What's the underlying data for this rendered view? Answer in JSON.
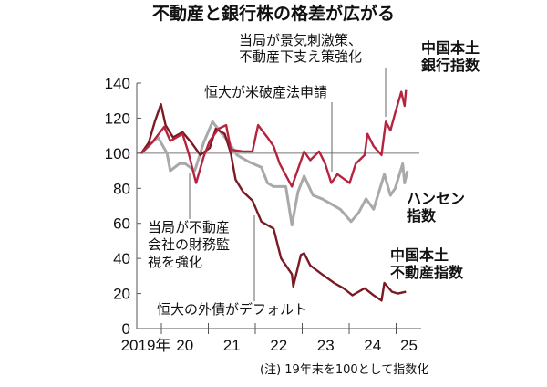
{
  "chart_data": {
    "type": "line",
    "title": "不動産と銀行株の格差が広がる",
    "note": "(注) 19年末を100として指数化",
    "ylim": [
      0,
      140
    ],
    "yticks": [
      "0",
      "20",
      "40",
      "60",
      "80",
      "100",
      "120",
      "140"
    ],
    "xticks": [
      "2019年",
      "20",
      "21",
      "22",
      "23",
      "24",
      "25"
    ],
    "reference_line": 100,
    "series": [
      {
        "name": "中国本土\n銀行指数",
        "color": "#b5243f",
        "points": [
          [
            2019.57,
            100
          ],
          [
            2019.8,
            106
          ],
          [
            2020.06,
            115
          ],
          [
            2020.19,
            107
          ],
          [
            2020.45,
            111
          ],
          [
            2020.58,
            100
          ],
          [
            2020.74,
            83
          ],
          [
            2020.9,
            98
          ],
          [
            2021.03,
            107
          ],
          [
            2021.22,
            114
          ],
          [
            2021.38,
            116
          ],
          [
            2021.48,
            102
          ],
          [
            2021.74,
            101
          ],
          [
            2021.94,
            101
          ],
          [
            2022.06,
            116
          ],
          [
            2022.26,
            109
          ],
          [
            2022.39,
            104
          ],
          [
            2022.52,
            94
          ],
          [
            2022.78,
            81
          ],
          [
            2023.04,
            101
          ],
          [
            2023.17,
            96
          ],
          [
            2023.36,
            101
          ],
          [
            2023.49,
            94
          ],
          [
            2023.62,
            83
          ],
          [
            2023.75,
            88
          ],
          [
            2024.01,
            83
          ],
          [
            2024.14,
            94
          ],
          [
            2024.33,
            99
          ],
          [
            2024.39,
            111
          ],
          [
            2024.52,
            104
          ],
          [
            2024.69,
            99
          ],
          [
            2024.78,
            118
          ],
          [
            2024.88,
            113
          ],
          [
            2024.98,
            123
          ],
          [
            2025.11,
            135
          ],
          [
            2025.18,
            127
          ],
          [
            2025.21,
            136
          ]
        ]
      },
      {
        "name": "ハンセン\n指数",
        "color": "#a9a9a9",
        "points": [
          [
            2019.57,
            100
          ],
          [
            2019.8,
            106
          ],
          [
            2019.93,
            109
          ],
          [
            2020.12,
            100
          ],
          [
            2020.19,
            90
          ],
          [
            2020.38,
            94
          ],
          [
            2020.51,
            94
          ],
          [
            2020.71,
            90
          ],
          [
            2020.9,
            106
          ],
          [
            2021.09,
            118
          ],
          [
            2021.29,
            111
          ],
          [
            2021.42,
            107
          ],
          [
            2021.61,
            99
          ],
          [
            2021.87,
            95
          ],
          [
            2022.13,
            92
          ],
          [
            2022.26,
            83
          ],
          [
            2022.39,
            81
          ],
          [
            2022.65,
            81
          ],
          [
            2022.78,
            59
          ],
          [
            2022.91,
            78
          ],
          [
            2023.04,
            87
          ],
          [
            2023.23,
            76
          ],
          [
            2023.42,
            74
          ],
          [
            2023.62,
            71
          ],
          [
            2023.81,
            68
          ],
          [
            2024.04,
            61
          ],
          [
            2024.2,
            66
          ],
          [
            2024.36,
            74
          ],
          [
            2024.52,
            68
          ],
          [
            2024.75,
            88
          ],
          [
            2024.88,
            76
          ],
          [
            2024.98,
            80
          ],
          [
            2025.14,
            94
          ],
          [
            2025.18,
            83
          ],
          [
            2025.24,
            90
          ]
        ]
      },
      {
        "name": "中国本土\n不動産指数",
        "color": "#7a1a24",
        "points": [
          [
            2019.57,
            100
          ],
          [
            2019.73,
            106
          ],
          [
            2019.86,
            118
          ],
          [
            2019.99,
            128
          ],
          [
            2020.09,
            116
          ],
          [
            2020.25,
            109
          ],
          [
            2020.45,
            112
          ],
          [
            2020.64,
            106
          ],
          [
            2020.83,
            99
          ],
          [
            2021.03,
            103
          ],
          [
            2021.16,
            114
          ],
          [
            2021.35,
            111
          ],
          [
            2021.48,
            100
          ],
          [
            2021.58,
            85
          ],
          [
            2021.74,
            78
          ],
          [
            2021.94,
            73
          ],
          [
            2022.13,
            61
          ],
          [
            2022.39,
            57
          ],
          [
            2022.55,
            40
          ],
          [
            2022.78,
            31
          ],
          [
            2022.81,
            24
          ],
          [
            2022.97,
            42
          ],
          [
            2023.04,
            43
          ],
          [
            2023.17,
            36
          ],
          [
            2023.42,
            31
          ],
          [
            2023.68,
            26
          ],
          [
            2023.88,
            23
          ],
          [
            2024.07,
            19
          ],
          [
            2024.33,
            23
          ],
          [
            2024.52,
            19
          ],
          [
            2024.69,
            16
          ],
          [
            2024.75,
            26
          ],
          [
            2024.91,
            21
          ],
          [
            2025.04,
            20
          ],
          [
            2025.21,
            21
          ]
        ]
      }
    ],
    "annotations": [
      {
        "text": "当局が景気刺激策、\n不動産下支え策強化"
      },
      {
        "text": "恒大が米破産法申請"
      },
      {
        "text": "当局が不動産\n会社の財務監\n視を強化"
      },
      {
        "text": "恒大の外債がデフォルト"
      }
    ]
  }
}
